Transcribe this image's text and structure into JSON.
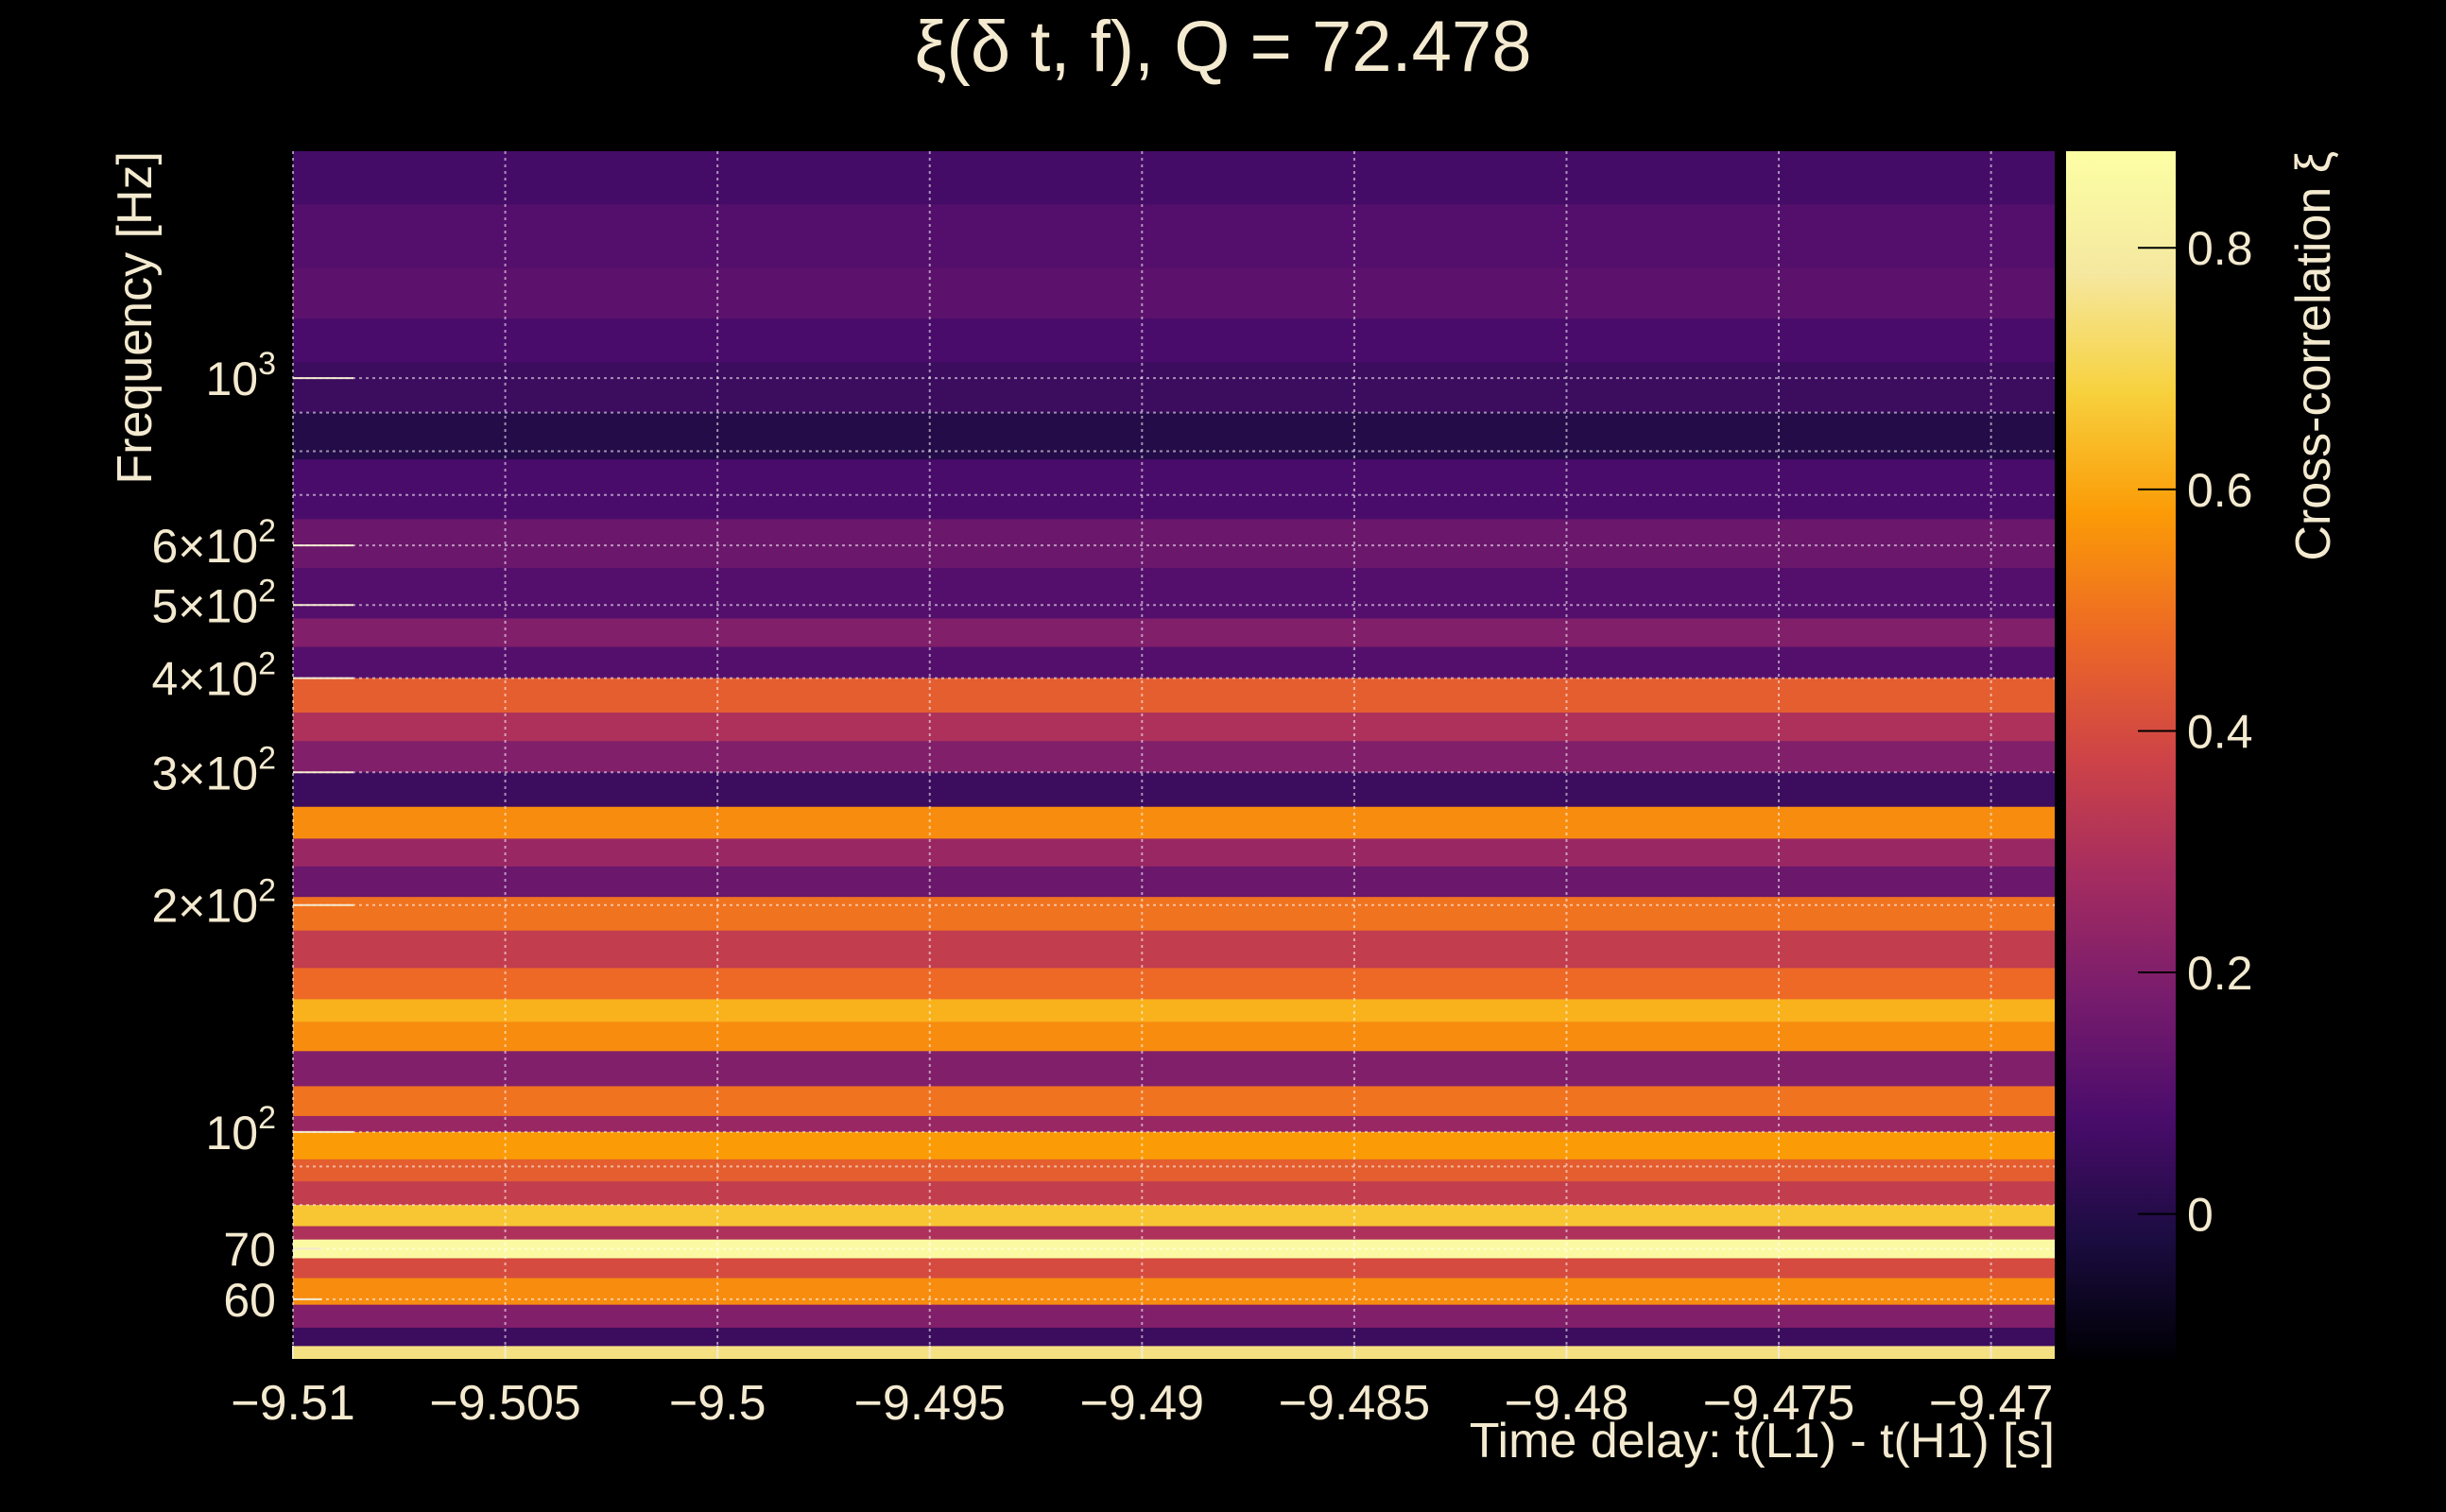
{
  "chart_data": {
    "type": "heatmap",
    "title": "ξ(δ t, f), Q = 72.478",
    "xlabel": "Time delay: t(L1) - t(H1) [s]",
    "ylabel": "Frequency [Hz]",
    "colorbar_label": "Cross-correlation ξ",
    "xlim": [
      -9.51,
      -9.4685
    ],
    "ylim": [
      50,
      2000
    ],
    "y_scale": "log",
    "x_ticks": [
      -9.51,
      -9.505,
      -9.5,
      -9.495,
      -9.49,
      -9.485,
      -9.48,
      -9.475,
      -9.47
    ],
    "x_tick_labels": [
      "−9.51",
      "−9.505",
      "−9.5",
      "−9.495",
      "−9.49",
      "−9.485",
      "−9.48",
      "−9.475",
      "−9.47"
    ],
    "y_ticks": [
      {
        "value": 1000,
        "base": "10",
        "exp": "3",
        "prefix": ""
      },
      {
        "value": 600,
        "base": "10",
        "exp": "2",
        "prefix": "6×"
      },
      {
        "value": 500,
        "base": "10",
        "exp": "2",
        "prefix": "5×"
      },
      {
        "value": 400,
        "base": "10",
        "exp": "2",
        "prefix": "4×"
      },
      {
        "value": 300,
        "base": "10",
        "exp": "2",
        "prefix": "3×"
      },
      {
        "value": 200,
        "base": "10",
        "exp": "2",
        "prefix": "2×"
      },
      {
        "value": 100,
        "base": "10",
        "exp": "2",
        "prefix": ""
      },
      {
        "value": 70,
        "base": "70",
        "exp": "",
        "prefix": ""
      },
      {
        "value": 60,
        "base": "60",
        "exp": "",
        "prefix": ""
      }
    ],
    "y_gridlines": [
      1000,
      900,
      800,
      700,
      600,
      500,
      400,
      300,
      200,
      100,
      90,
      80,
      70,
      60
    ],
    "colorbar": {
      "range": [
        -0.12,
        0.88
      ],
      "ticks": [
        0,
        0.2,
        0.4,
        0.6,
        0.8
      ],
      "tick_labels": [
        "0",
        "0.2",
        "0.4",
        "0.6",
        "0.8"
      ],
      "colormap": "inferno"
    },
    "grid": true,
    "bands": [
      {
        "f_low": 1700,
        "f_high": 2000,
        "value": 0.07
      },
      {
        "f_low": 1400,
        "f_high": 1700,
        "value": 0.1
      },
      {
        "f_low": 1200,
        "f_high": 1400,
        "value": 0.12
      },
      {
        "f_low": 1050,
        "f_high": 1200,
        "value": 0.08
      },
      {
        "f_low": 900,
        "f_high": 1050,
        "value": 0.05
      },
      {
        "f_low": 780,
        "f_high": 900,
        "value": 0.0
      },
      {
        "f_low": 650,
        "f_high": 780,
        "value": 0.08
      },
      {
        "f_low": 560,
        "f_high": 650,
        "value": 0.15
      },
      {
        "f_low": 480,
        "f_high": 560,
        "value": 0.1
      },
      {
        "f_low": 440,
        "f_high": 480,
        "value": 0.2
      },
      {
        "f_low": 400,
        "f_high": 440,
        "value": 0.1
      },
      {
        "f_low": 360,
        "f_high": 400,
        "value": 0.45
      },
      {
        "f_low": 330,
        "f_high": 360,
        "value": 0.3
      },
      {
        "f_low": 300,
        "f_high": 330,
        "value": 0.2
      },
      {
        "f_low": 270,
        "f_high": 300,
        "value": 0.05
      },
      {
        "f_low": 245,
        "f_high": 270,
        "value": 0.55
      },
      {
        "f_low": 225,
        "f_high": 245,
        "value": 0.25
      },
      {
        "f_low": 205,
        "f_high": 225,
        "value": 0.15
      },
      {
        "f_low": 185,
        "f_high": 205,
        "value": 0.5
      },
      {
        "f_low": 165,
        "f_high": 185,
        "value": 0.35
      },
      {
        "f_low": 150,
        "f_high": 165,
        "value": 0.48
      },
      {
        "f_low": 140,
        "f_high": 150,
        "value": 0.62
      },
      {
        "f_low": 128,
        "f_high": 140,
        "value": 0.55
      },
      {
        "f_low": 115,
        "f_high": 128,
        "value": 0.2
      },
      {
        "f_low": 105,
        "f_high": 115,
        "value": 0.5
      },
      {
        "f_low": 100,
        "f_high": 105,
        "value": 0.25
      },
      {
        "f_low": 92,
        "f_high": 100,
        "value": 0.58
      },
      {
        "f_low": 86,
        "f_high": 92,
        "value": 0.45
      },
      {
        "f_low": 80,
        "f_high": 86,
        "value": 0.35
      },
      {
        "f_low": 75,
        "f_high": 80,
        "value": 0.66
      },
      {
        "f_low": 72,
        "f_high": 75,
        "value": 0.3
      },
      {
        "f_low": 68,
        "f_high": 72,
        "value": 0.86
      },
      {
        "f_low": 64,
        "f_high": 68,
        "value": 0.4
      },
      {
        "f_low": 59,
        "f_high": 64,
        "value": 0.55
      },
      {
        "f_low": 55,
        "f_high": 59,
        "value": 0.2
      },
      {
        "f_low": 52,
        "f_high": 55,
        "value": 0.05
      },
      {
        "f_low": 50,
        "f_high": 52,
        "value": 0.75
      }
    ]
  }
}
